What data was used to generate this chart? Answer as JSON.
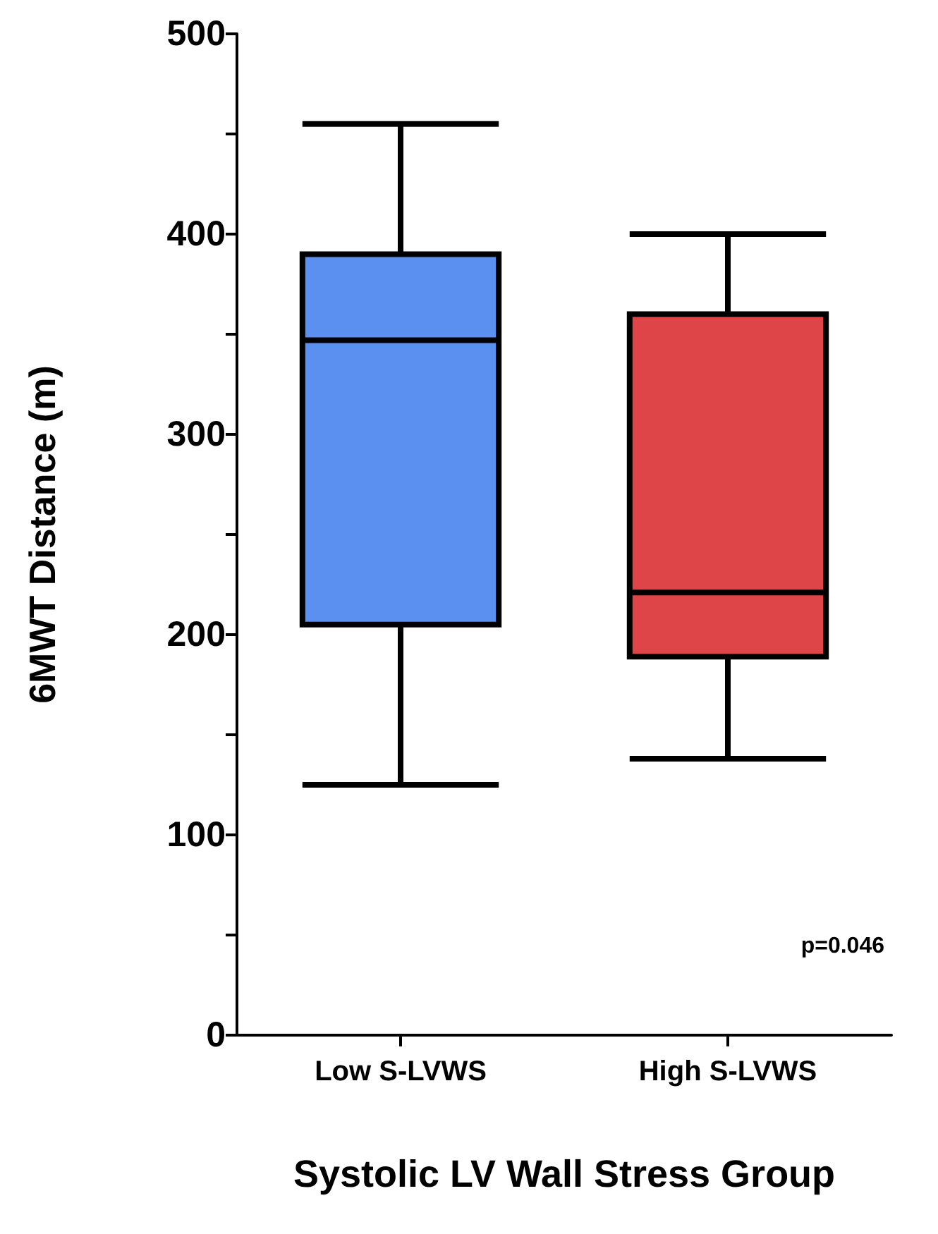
{
  "chart_data": {
    "type": "box",
    "xlabel": "Systolic LV Wall Stress Group",
    "ylabel": "6MWT Distance (m)",
    "categories": [
      "Low S-LVWS",
      "High S-LVWS"
    ],
    "colors": [
      "#5b8ff0",
      "#dd4548"
    ],
    "boxes": [
      {
        "low": 125,
        "q1": 205,
        "median": 347,
        "q3": 390,
        "high": 455
      },
      {
        "low": 138,
        "q1": 189,
        "median": 221,
        "q3": 360,
        "high": 400
      }
    ],
    "ylim": [
      0,
      500
    ],
    "yticks": [
      0,
      {
        "value": 50,
        "label": null
      },
      100,
      {
        "value": 150,
        "label": null
      },
      200,
      {
        "value": 250,
        "label": null
      },
      300,
      {
        "value": 350,
        "label": null
      },
      400,
      {
        "value": 450,
        "label": null
      },
      500
    ],
    "annotations": [
      "p=0.046"
    ]
  }
}
